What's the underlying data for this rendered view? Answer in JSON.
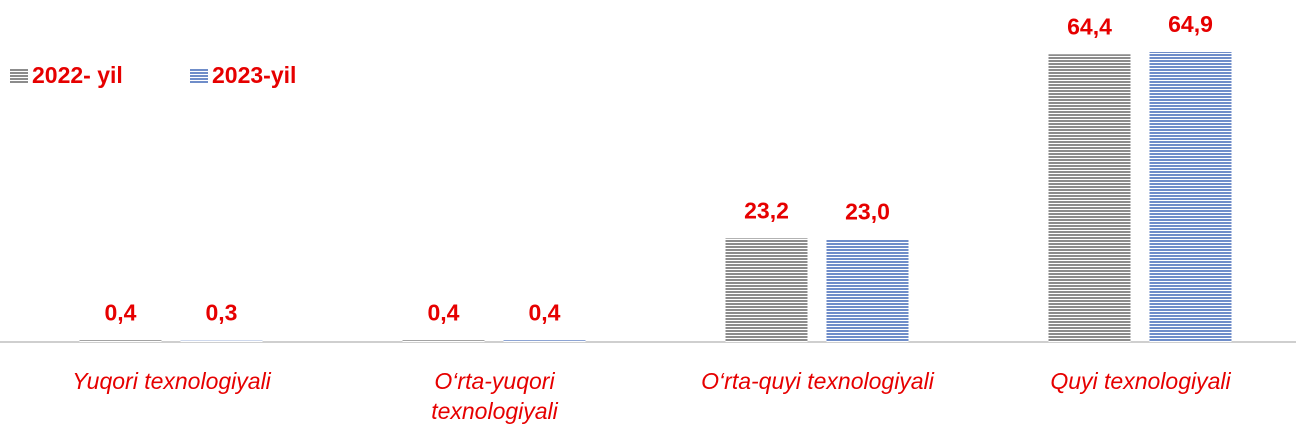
{
  "chart_data": {
    "type": "bar",
    "categories": [
      "Yuqori texnologiyali",
      "O‘rta-yuqori texnologiyali",
      "O‘rta-quyi texnologiyali",
      "Quyi texnologiyali"
    ],
    "series": [
      {
        "name": "2022- yil",
        "color": "#8c8c8c",
        "values": [
          0.4,
          0.4,
          23.2,
          64.4
        ],
        "value_labels": [
          "0,4",
          "0,4",
          "23,2",
          "64,4"
        ]
      },
      {
        "name": "2023-yil",
        "color": "#6f8dc9",
        "values": [
          0.3,
          0.4,
          23.0,
          64.9
        ],
        "value_labels": [
          "0,3",
          "0,4",
          "23,0",
          "64,9"
        ]
      }
    ],
    "legend": "top-left"
  }
}
